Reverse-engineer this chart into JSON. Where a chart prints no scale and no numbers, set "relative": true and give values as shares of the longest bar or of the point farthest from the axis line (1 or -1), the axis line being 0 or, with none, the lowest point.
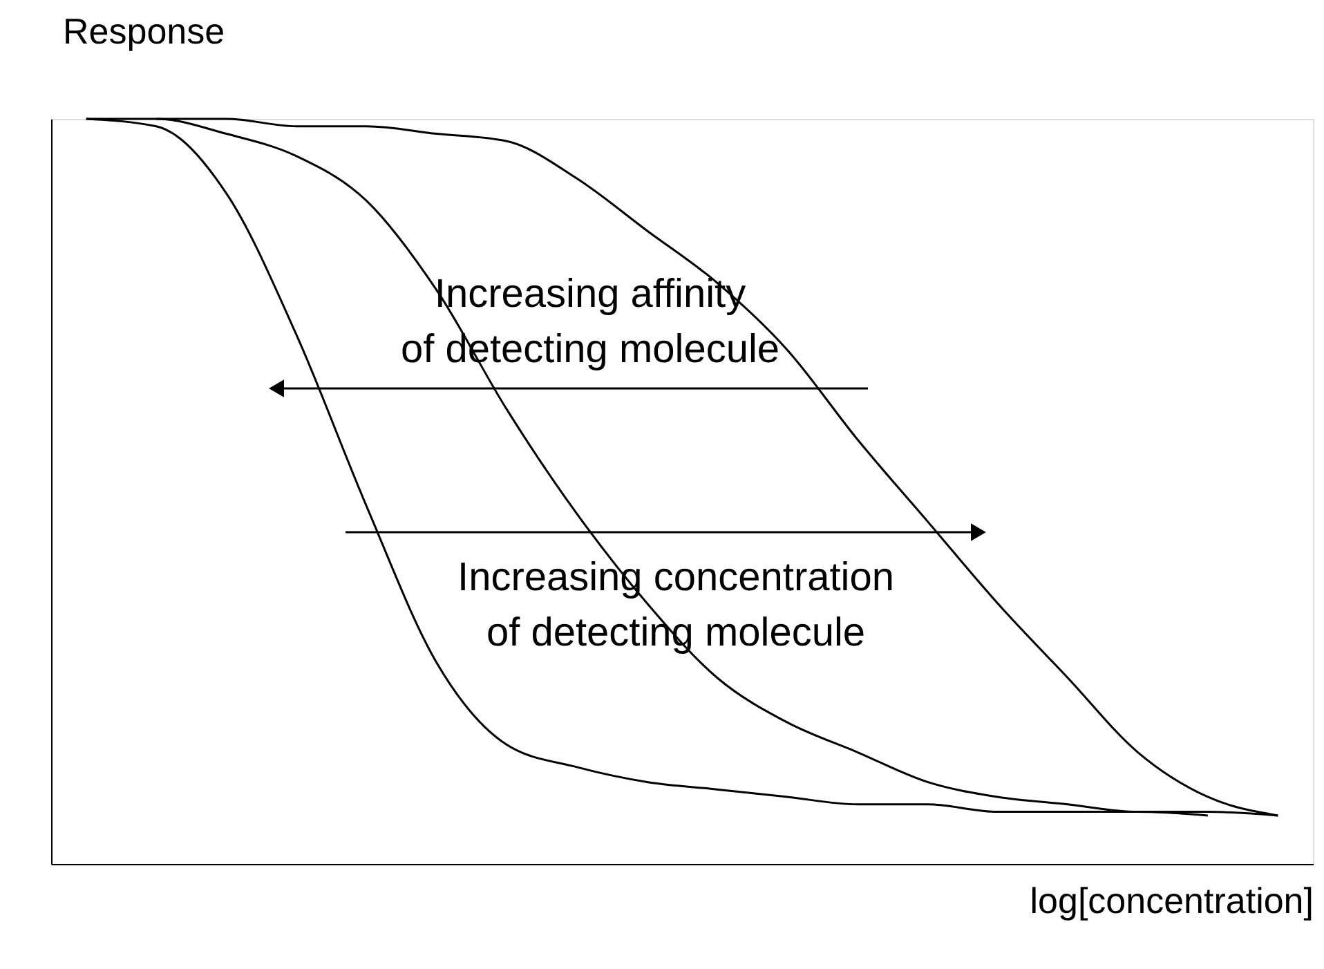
{
  "chart_data": {
    "type": "line",
    "relative": true,
    "xlabel": "log[concentration]",
    "ylabel": "Response",
    "tick_labels": false,
    "grid": false,
    "legend": false,
    "marker": "none",
    "line_style": "solid",
    "categories": [
      null,
      null,
      null,
      null,
      null,
      null,
      null,
      null,
      null,
      null,
      null,
      null,
      null,
      null,
      null,
      null,
      null,
      null
    ],
    "series": [
      {
        "color": "#000000",
        "values": [
          1,
          0.99,
          0.9,
          0.71,
          0.48,
          0.27,
          0.16,
          0.13,
          0.11,
          0.1,
          0.09,
          0.08,
          0.08,
          0.07,
          0.07,
          0.07,
          0.065,
          null
        ]
      },
      {
        "color": "#000000",
        "values": [
          1,
          1,
          0.98,
          0.95,
          0.89,
          0.77,
          0.61,
          0.47,
          0.35,
          0.25,
          0.19,
          0.15,
          0.11,
          0.09,
          0.08,
          0.07,
          0.07,
          0.065
        ]
      },
      {
        "color": "#000000",
        "values": [
          null,
          1,
          1,
          0.99,
          0.99,
          0.98,
          0.97,
          0.92,
          0.85,
          0.78,
          0.69,
          0.57,
          0.46,
          0.35,
          0.25,
          0.15,
          0.09,
          0.065
        ]
      }
    ],
    "annotations": [
      "Increasing affinity\nof detecting molecule",
      "Increasing concentration\nof detecting molecule"
    ]
  }
}
